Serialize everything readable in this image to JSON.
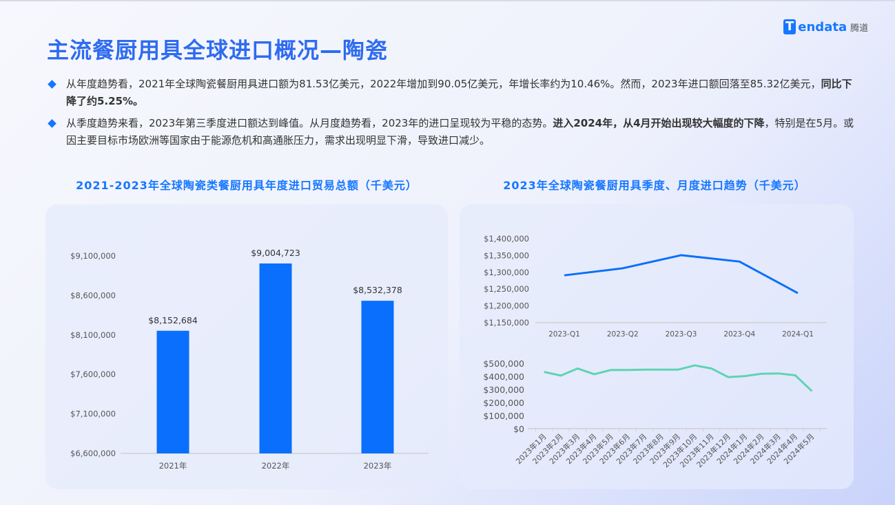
{
  "title": "主流餐厨用具全球进口概况—陶瓷",
  "logo": {
    "mark": "T",
    "word": "endata",
    "cn": "腾道"
  },
  "bullets": [
    {
      "parts": [
        {
          "text": "从年度趋势看，2021年全球陶瓷餐厨用具进口额为81.53亿美元，2022年增加到90.05亿美元，年增长率约为10.46%。然而，2023年进口额回落至85.32亿美元，",
          "bold": false
        },
        {
          "text": "同比下降了约5.25%。",
          "bold": true
        }
      ]
    },
    {
      "parts": [
        {
          "text": "从季度趋势来看，2023年第三季度进口额达到峰值。从月度趋势看，2023年的进口呈现较为平稳的态势。",
          "bold": false
        },
        {
          "text": "进入2024年，从4月开始出现较大幅度的下降",
          "bold": true
        },
        {
          "text": "，特别是在5月。或因主要目标市场欧洲等国家由于能源危机和高通胀压力，需求出现明显下滑，导致进口减少。",
          "bold": false
        }
      ]
    }
  ],
  "chart_data": [
    {
      "type": "bar",
      "title": "2021-2023年全球陶瓷类餐厨用具年度进口贸易总额（千美元）",
      "categories": [
        "2021年",
        "2022年",
        "2023年"
      ],
      "values": [
        8152684,
        9004723,
        8532378
      ],
      "data_labels": [
        "$8,152,684",
        "$9,004,723",
        "$8,532,378"
      ],
      "ylim": [
        6600000,
        9100000
      ],
      "yticks": [
        "$6,600,000",
        "$7,100,000",
        "$7,600,000",
        "$8,100,000",
        "$8,600,000",
        "$9,100,000"
      ],
      "color": "#0a6ffc",
      "grid": false
    },
    {
      "type": "line",
      "title": "2023年全球陶瓷餐厨用具季度、月度进口趋势（千美元）",
      "categories": [
        "2023-Q1",
        "2023-Q2",
        "2023-Q3",
        "2023-Q4",
        "2024-Q1"
      ],
      "values": [
        1291000,
        1312000,
        1351000,
        1332000,
        1238000
      ],
      "ylim": [
        1150000,
        1400000
      ],
      "yticks": [
        "$1,150,000",
        "$1,200,000",
        "$1,250,000",
        "$1,300,000",
        "$1,350,000",
        "$1,400,000"
      ],
      "color": "#0a6ffc",
      "grid": false
    },
    {
      "type": "line",
      "categories": [
        "2023年1月",
        "2023年2月",
        "2023年3月",
        "2023年4月",
        "2023年5月",
        "2023年6月",
        "2023年7月",
        "2023年8月",
        "2023年9月",
        "2023年10月",
        "2023年11月",
        "2023年12月",
        "2024年1月",
        "2024年2月",
        "2024年3月",
        "2024年4月",
        "2024年5月"
      ],
      "values": [
        434000,
        406000,
        460000,
        416000,
        449000,
        449000,
        451000,
        451000,
        451000,
        484000,
        460000,
        394000,
        402000,
        420000,
        422000,
        408000,
        287000
      ],
      "ylim": [
        0,
        500000
      ],
      "yticks": [
        "$0",
        "$100,000",
        "$200,000",
        "$300,000",
        "$400,000",
        "$500,000"
      ],
      "color": "#5fd3b3",
      "grid": false
    }
  ]
}
